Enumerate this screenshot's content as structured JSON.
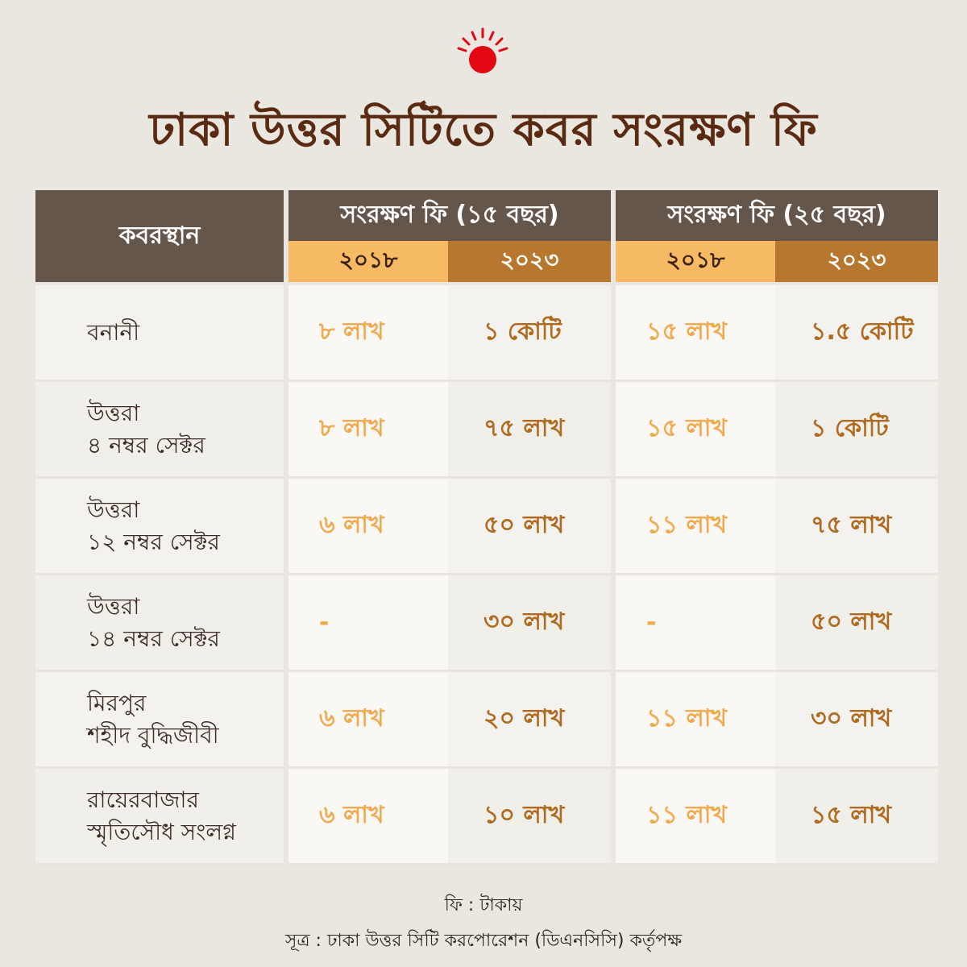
{
  "title": "ঢাকা উত্তর সিটিতে কবর সংরক্ষণ ফি",
  "colors": {
    "background": "#e9e7df",
    "title": "#5b2a13",
    "header": "#65564b",
    "year_light": "#f6b964",
    "year_dark": "#b8772e",
    "value_2018": "#f1aa4e",
    "value_2023": "#b06a1f",
    "logo_sun": "#e30613"
  },
  "icons": {
    "logo": "red-sun-logo-icon"
  },
  "chart_data": {
    "type": "table",
    "title": "ঢাকা উত্তর সিটিতে কবর সংরক্ষণ ফি",
    "row_header": "কবরস্থান",
    "column_groups": [
      {
        "name": "সংরক্ষণ ফি (১৫ বছর)",
        "years": [
          "২০১৮",
          "২০২৩"
        ]
      },
      {
        "name": "সংরক্ষণ ফি (২৫ বছর)",
        "years": [
          "২০১৮",
          "২০২৩"
        ]
      }
    ],
    "rows": [
      {
        "name_lines": [
          "বনানী"
        ],
        "values": [
          "৮ লাখ",
          "১ কোটি",
          "১৫ লাখ",
          "১.৫ কোটি"
        ]
      },
      {
        "name_lines": [
          "উত্তরা",
          "৪ নম্বর সেক্টর"
        ],
        "values": [
          "৮ লাখ",
          "৭৫ লাখ",
          "১৫ লাখ",
          "১ কোটি"
        ]
      },
      {
        "name_lines": [
          "উত্তরা",
          "১২ নম্বর সেক্টর"
        ],
        "values": [
          "৬ লাখ",
          "৫০ লাখ",
          "১১ লাখ",
          "৭৫ লাখ"
        ]
      },
      {
        "name_lines": [
          "উত্তরা",
          "১৪ নম্বর সেক্টর"
        ],
        "values": [
          "-",
          "৩০ লাখ",
          "-",
          "৫০ লাখ"
        ]
      },
      {
        "name_lines": [
          "মিরপুর",
          "শহীদ বুদ্ধিজীবী"
        ],
        "values": [
          "৬ লাখ",
          "২০ লাখ",
          "১১ লাখ",
          "৩০ লাখ"
        ]
      },
      {
        "name_lines": [
          "রায়েরবাজার",
          "স্মৃতিসৌধ সংলগ্ন"
        ],
        "values": [
          "৬ লাখ",
          "১০ লাখ",
          "১১ লাখ",
          "১৫ লাখ"
        ]
      }
    ]
  },
  "footer": {
    "unit_note": "ফি : টাকায়",
    "source": "সূত্র : ঢাকা উত্তর সিটি করপোরেশন (ডিএনসিসি) কর্তৃপক্ষ"
  }
}
